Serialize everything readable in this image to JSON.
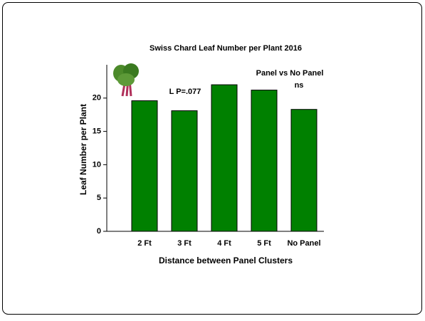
{
  "chart_data": {
    "type": "bar",
    "title": "Swiss Chard Leaf Number per Plant 2016",
    "x_label": "Distance between Panel Clusters",
    "y_label": "Leaf Number per Plant",
    "categories": [
      "2 Ft",
      "3 Ft",
      "4 Ft",
      "5 Ft",
      "No Panel"
    ],
    "values": [
      19.6,
      18.1,
      22.0,
      21.2,
      18.3
    ],
    "color": "#008000",
    "ylim": [
      0,
      25
    ],
    "yticks": [
      0,
      5,
      10,
      15,
      20
    ],
    "grid": false,
    "annotations": [
      "L  P=.077",
      "Panel vs No Panel",
      "ns"
    ]
  }
}
